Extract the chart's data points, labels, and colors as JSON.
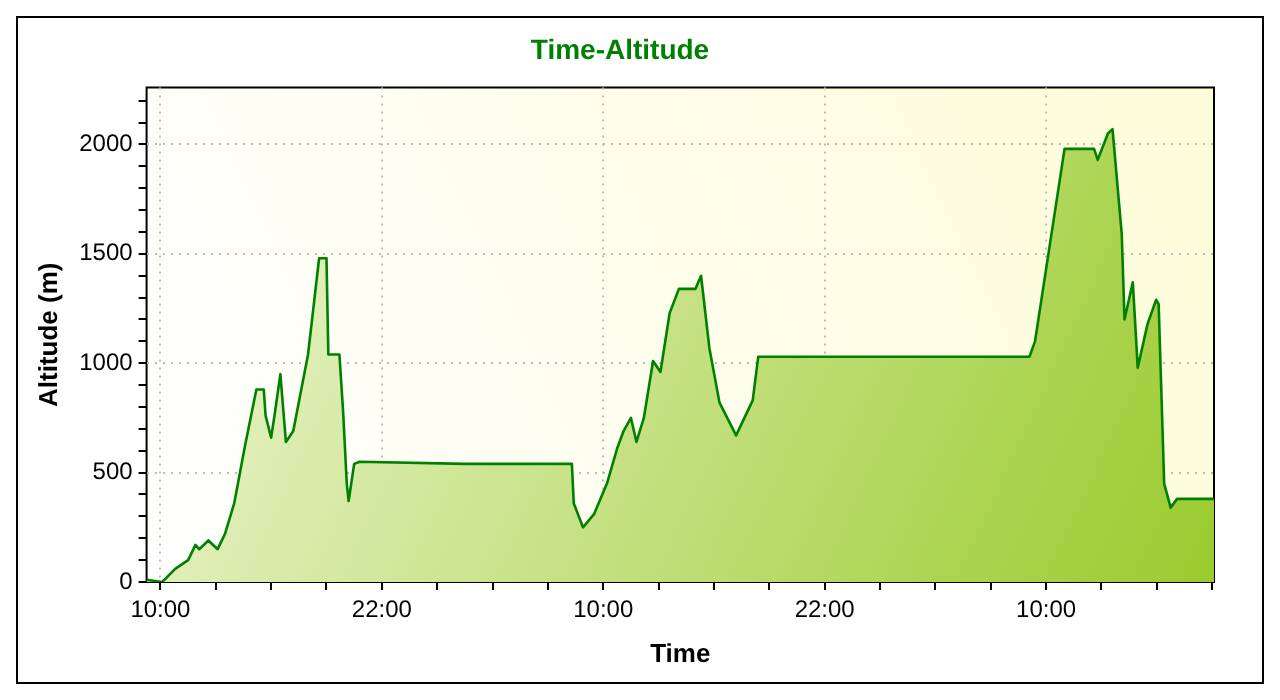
{
  "chart_data": {
    "type": "area",
    "title": "Time-Altitude",
    "xlabel": "Time",
    "ylabel": "Altitude (m)",
    "xlim": [
      "2000-01-01T09:15",
      "2000-01-03T19:06"
    ],
    "ylim": [
      0,
      2260
    ],
    "xticks": [
      {
        "value": "2000-01-01T10:00",
        "label": "10:00"
      },
      {
        "value": "2000-01-01T13:00",
        "label": null
      },
      {
        "value": "2000-01-01T16:00",
        "label": null
      },
      {
        "value": "2000-01-01T19:00",
        "label": null
      },
      {
        "value": "2000-01-01T22:00",
        "label": "22:00"
      },
      {
        "value": "2000-01-02T01:00",
        "label": null
      },
      {
        "value": "2000-01-02T04:00",
        "label": null
      },
      {
        "value": "2000-01-02T07:00",
        "label": null
      },
      {
        "value": "2000-01-02T10:00",
        "label": "10:00"
      },
      {
        "value": "2000-01-02T13:00",
        "label": null
      },
      {
        "value": "2000-01-02T16:00",
        "label": null
      },
      {
        "value": "2000-01-02T19:00",
        "label": null
      },
      {
        "value": "2000-01-02T22:00",
        "label": "22:00"
      },
      {
        "value": "2000-01-03T01:00",
        "label": null
      },
      {
        "value": "2000-01-03T04:00",
        "label": null
      },
      {
        "value": "2000-01-03T07:00",
        "label": null
      },
      {
        "value": "2000-01-03T10:00",
        "label": "10:00"
      },
      {
        "value": "2000-01-03T13:00",
        "label": null
      },
      {
        "value": "2000-01-03T16:00",
        "label": null
      },
      {
        "value": "2000-01-03T19:00",
        "label": null
      }
    ],
    "yticks": [
      0,
      {
        "value": 100,
        "label": null
      },
      {
        "value": 200,
        "label": null
      },
      {
        "value": 300,
        "label": null
      },
      {
        "value": 400,
        "label": null
      },
      500,
      {
        "value": 600,
        "label": null
      },
      {
        "value": 700,
        "label": null
      },
      {
        "value": 800,
        "label": null
      },
      {
        "value": 900,
        "label": null
      },
      1000,
      {
        "value": 1100,
        "label": null
      },
      {
        "value": 1200,
        "label": null
      },
      {
        "value": 1300,
        "label": null
      },
      {
        "value": 1400,
        "label": null
      },
      1500,
      {
        "value": 1600,
        "label": null
      },
      {
        "value": 1700,
        "label": null
      },
      {
        "value": 1800,
        "label": null
      },
      {
        "value": 1900,
        "label": null
      },
      2000,
      {
        "value": 2100,
        "label": null
      },
      {
        "value": 2200,
        "label": null
      }
    ],
    "grid": true,
    "legend": false,
    "marker": "none",
    "line_style": "solid",
    "series": [
      {
        "color": "#008000",
        "x": [
          "2000-01-01T09:15",
          "2000-01-01T10:06",
          "2000-01-01T10:48",
          "2000-01-01T11:30",
          "2000-01-01T11:54",
          "2000-01-01T12:06",
          "2000-01-01T12:36",
          "2000-01-01T13:06",
          "2000-01-01T13:30",
          "2000-01-01T14:00",
          "2000-01-01T14:36",
          "2000-01-01T15:12",
          "2000-01-01T15:36",
          "2000-01-01T15:42",
          "2000-01-01T16:00",
          "2000-01-01T16:12",
          "2000-01-01T16:30",
          "2000-01-01T16:48",
          "2000-01-01T17:12",
          "2000-01-01T18:00",
          "2000-01-01T18:36",
          "2000-01-01T19:00",
          "2000-01-01T19:06",
          "2000-01-01T19:42",
          "2000-01-01T19:54",
          "2000-01-01T20:06",
          "2000-01-01T20:12",
          "2000-01-01T20:30",
          "2000-01-01T20:48",
          "2000-01-02T02:30",
          "2000-01-02T08:18",
          "2000-01-02T08:24",
          "2000-01-02T08:54",
          "2000-01-02T09:30",
          "2000-01-02T10:12",
          "2000-01-02T10:45",
          "2000-01-02T11:06",
          "2000-01-02T11:30",
          "2000-01-02T11:48",
          "2000-01-02T12:12",
          "2000-01-02T12:42",
          "2000-01-02T13:06",
          "2000-01-02T13:36",
          "2000-01-02T14:06",
          "2000-01-02T15:00",
          "2000-01-02T15:18",
          "2000-01-02T15:45",
          "2000-01-02T16:18",
          "2000-01-02T17:12",
          "2000-01-02T18:06",
          "2000-01-02T18:24",
          "2000-01-03T03:30",
          "2000-01-03T09:06",
          "2000-01-03T09:24",
          "2000-01-03T11:00",
          "2000-01-03T12:36",
          "2000-01-03T12:48",
          "2000-01-03T13:21",
          "2000-01-03T13:36",
          "2000-01-03T14:06",
          "2000-01-03T14:15",
          "2000-01-03T14:42",
          "2000-01-03T14:58",
          "2000-01-03T15:30",
          "2000-01-03T15:58",
          "2000-01-03T16:06",
          "2000-01-03T16:24",
          "2000-01-03T16:45",
          "2000-01-03T17:06",
          "2000-01-03T19:06"
        ],
        "values": [
          10,
          0,
          60,
          100,
          170,
          150,
          190,
          150,
          220,
          360,
          630,
          880,
          880,
          760,
          660,
          770,
          950,
          640,
          690,
          1040,
          1480,
          1480,
          1040,
          1040,
          780,
          450,
          370,
          540,
          550,
          540,
          540,
          360,
          250,
          310,
          450,
          610,
          690,
          750,
          640,
          750,
          1010,
          960,
          1230,
          1340,
          1340,
          1400,
          1070,
          820,
          670,
          830,
          1030,
          1030,
          1030,
          1100,
          1980,
          1980,
          1930,
          2050,
          2070,
          1590,
          1200,
          1370,
          980,
          1180,
          1290,
          1270,
          450,
          340,
          380,
          380
        ]
      }
    ]
  }
}
